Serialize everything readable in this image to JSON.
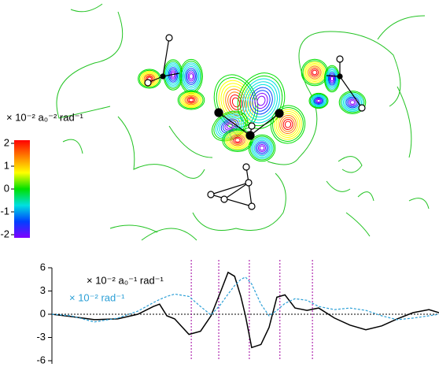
{
  "chart_data": [
    {
      "type": "contour",
      "colorbar_label": "× 10⁻² a₀⁻² rad⁻¹",
      "clim": [
        -2,
        2
      ],
      "cticks": [
        2,
        1,
        0,
        -1,
        -2
      ],
      "colormap": [
        "#ff0000",
        "#ff8000",
        "#ffff00",
        "#00e000",
        "#00e0e0",
        "#0040ff",
        "#8000ff"
      ]
    },
    {
      "type": "line",
      "x": [
        0,
        4.9,
        11,
        17,
        22.2,
        26.2,
        27.8,
        29.7,
        31.7,
        35.4,
        38.4,
        41.1,
        43.5,
        45.5,
        47.2,
        48.8,
        50,
        51.6,
        54,
        56.1,
        58.1,
        60.2,
        62.8,
        65.9,
        68.9,
        73,
        77,
        81.1,
        85.2,
        89.2,
        93.3,
        97.4,
        100
      ],
      "xlim": [
        0,
        100
      ],
      "ylim": [
        -6,
        6
      ],
      "yticks": [
        6,
        3,
        0,
        -3,
        -6
      ],
      "vlines": [
        36,
        43.1,
        51,
        58.9,
        67.3
      ],
      "vline_color": "#a000a0",
      "series": [
        {
          "name": "× 10⁻² a₀⁻¹ rad⁻¹",
          "color": "#000000",
          "dashed": false,
          "values": [
            0,
            -0.3,
            -0.7,
            -0.6,
            0,
            1.0,
            1.3,
            -0.2,
            -0.6,
            -2.6,
            -2.2,
            -0.2,
            2.8,
            5.4,
            4.9,
            2.3,
            -0.2,
            -4.3,
            -3.9,
            -1.7,
            2.2,
            2.5,
            0.8,
            0.5,
            0.8,
            -0.5,
            -1.4,
            -2.0,
            -1.5,
            -0.6,
            0.2,
            0.6,
            0.2
          ]
        },
        {
          "name": "× 10⁻² rad⁻¹",
          "color": "#2a9fd6",
          "dashed": true,
          "values": [
            0,
            -0.2,
            -1.0,
            -0.5,
            0.4,
            1.5,
            1.9,
            2.3,
            2.6,
            2.3,
            1.0,
            -0.1,
            1.2,
            2.6,
            3.7,
            4.5,
            4.8,
            3.9,
            1.3,
            -0.2,
            0.5,
            1.4,
            2.0,
            1.8,
            1.0,
            0.6,
            0.8,
            0.5,
            -0.2,
            -0.7,
            -0.5,
            -0.2,
            0
          ]
        }
      ]
    }
  ]
}
